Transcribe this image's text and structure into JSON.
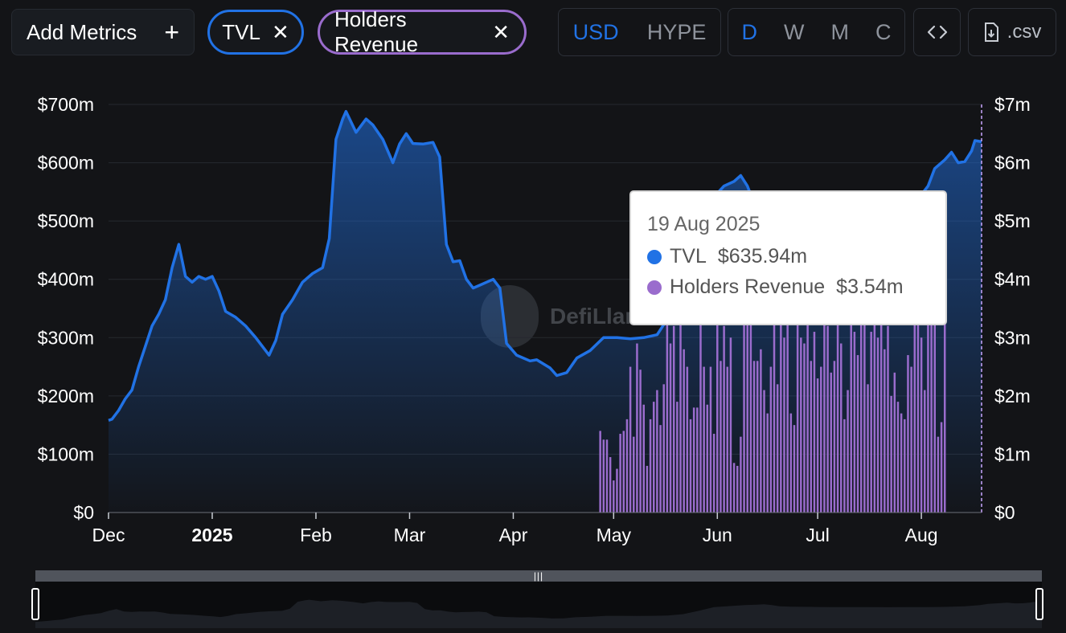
{
  "toolbar": {
    "add_metrics_label": "Add Metrics",
    "metrics": [
      {
        "label": "TVL",
        "color": "#2172e5"
      },
      {
        "label": "Holders Revenue",
        "color": "#9a6ccd"
      }
    ],
    "denominations": [
      "USD",
      "HYPE"
    ],
    "active_denomination": "USD",
    "granularity": [
      "D",
      "W",
      "M",
      "C"
    ],
    "active_granularity": "D",
    "embed_icon": "code-icon",
    "csv_icon": "file-download-icon",
    "csv_label": ".csv"
  },
  "tooltip": {
    "date": "19 Aug 2025",
    "rows": [
      {
        "label": "TVL",
        "value": "$635.94m",
        "color": "#2172e5"
      },
      {
        "label": "Holders Revenue",
        "value": "$3.54m",
        "color": "#9a6ccd"
      }
    ]
  },
  "watermark": "DefiLlama",
  "chart_data": {
    "type": "line",
    "x_start": "2024-12-01",
    "x_end": "2025-08-19",
    "xticks": [
      {
        "date": "2024-12-01",
        "label": "Dec"
      },
      {
        "date": "2025-01-01",
        "label": "2025",
        "bold": true
      },
      {
        "date": "2025-02-01",
        "label": "Feb"
      },
      {
        "date": "2025-03-01",
        "label": "Mar"
      },
      {
        "date": "2025-04-01",
        "label": "Apr"
      },
      {
        "date": "2025-05-01",
        "label": "May"
      },
      {
        "date": "2025-06-01",
        "label": "Jun"
      },
      {
        "date": "2025-07-01",
        "label": "Jul"
      },
      {
        "date": "2025-08-01",
        "label": "Aug"
      }
    ],
    "y_left": {
      "min": 0,
      "max": 700,
      "ticks": [
        0,
        100,
        200,
        300,
        400,
        500,
        600,
        700
      ],
      "tick_labels": [
        "$0",
        "$100m",
        "$200m",
        "$300m",
        "$400m",
        "$500m",
        "$600m",
        "$700m"
      ]
    },
    "y_right": {
      "min": 0,
      "max": 7,
      "ticks": [
        0,
        1,
        2,
        3,
        4,
        5,
        6,
        7
      ],
      "tick_labels": [
        "$0",
        "$1m",
        "$2m",
        "$3m",
        "$4m",
        "$5m",
        "$6m",
        "$7m"
      ]
    },
    "grid": true,
    "series": [
      {
        "name": "TVL",
        "type": "line",
        "axis": "left",
        "color": "#2172e5",
        "points": [
          [
            "2024-12-01",
            158
          ],
          [
            "2024-12-02",
            160
          ],
          [
            "2024-12-04",
            175
          ],
          [
            "2024-12-06",
            195
          ],
          [
            "2024-12-08",
            210
          ],
          [
            "2024-12-10",
            250
          ],
          [
            "2024-12-12",
            285
          ],
          [
            "2024-12-14",
            320
          ],
          [
            "2024-12-16",
            340
          ],
          [
            "2024-12-18",
            365
          ],
          [
            "2024-12-20",
            420
          ],
          [
            "2024-12-22",
            460
          ],
          [
            "2024-12-24",
            405
          ],
          [
            "2024-12-26",
            395
          ],
          [
            "2024-12-28",
            405
          ],
          [
            "2024-12-30",
            400
          ],
          [
            "2025-01-01",
            405
          ],
          [
            "2025-01-03",
            380
          ],
          [
            "2025-01-05",
            345
          ],
          [
            "2025-01-08",
            335
          ],
          [
            "2025-01-11",
            320
          ],
          [
            "2025-01-14",
            300
          ],
          [
            "2025-01-16",
            285
          ],
          [
            "2025-01-18",
            270
          ],
          [
            "2025-01-20",
            295
          ],
          [
            "2025-01-22",
            340
          ],
          [
            "2025-01-25",
            365
          ],
          [
            "2025-01-28",
            395
          ],
          [
            "2025-01-31",
            410
          ],
          [
            "2025-02-03",
            420
          ],
          [
            "2025-02-05",
            470
          ],
          [
            "2025-02-07",
            640
          ],
          [
            "2025-02-09",
            675
          ],
          [
            "2025-02-10",
            688
          ],
          [
            "2025-02-13",
            652
          ],
          [
            "2025-02-16",
            675
          ],
          [
            "2025-02-18",
            665
          ],
          [
            "2025-02-21",
            640
          ],
          [
            "2025-02-24",
            600
          ],
          [
            "2025-02-26",
            632
          ],
          [
            "2025-02-28",
            650
          ],
          [
            "2025-03-02",
            633
          ],
          [
            "2025-03-05",
            632
          ],
          [
            "2025-03-08",
            635
          ],
          [
            "2025-03-10",
            610
          ],
          [
            "2025-03-12",
            460
          ],
          [
            "2025-03-14",
            430
          ],
          [
            "2025-03-16",
            432
          ],
          [
            "2025-03-18",
            400
          ],
          [
            "2025-03-20",
            385
          ],
          [
            "2025-03-22",
            390
          ],
          [
            "2025-03-24",
            395
          ],
          [
            "2025-03-26",
            400
          ],
          [
            "2025-03-28",
            385
          ],
          [
            "2025-03-30",
            290
          ],
          [
            "2025-04-02",
            270
          ],
          [
            "2025-04-06",
            260
          ],
          [
            "2025-04-08",
            262
          ],
          [
            "2025-04-12",
            248
          ],
          [
            "2025-04-14",
            235
          ],
          [
            "2025-04-17",
            240
          ],
          [
            "2025-04-20",
            265
          ],
          [
            "2025-04-24",
            278
          ],
          [
            "2025-04-28",
            300
          ],
          [
            "2025-05-02",
            300
          ],
          [
            "2025-05-06",
            298
          ],
          [
            "2025-05-10",
            300
          ],
          [
            "2025-05-14",
            305
          ],
          [
            "2025-05-18",
            340
          ],
          [
            "2025-05-22",
            420
          ],
          [
            "2025-05-26",
            510
          ],
          [
            "2025-05-30",
            535
          ],
          [
            "2025-06-03",
            560
          ],
          [
            "2025-06-06",
            568
          ],
          [
            "2025-06-08",
            578
          ],
          [
            "2025-06-10",
            560
          ],
          [
            "2025-06-12",
            530
          ],
          [
            "2025-06-15",
            520
          ],
          [
            "2025-06-20",
            515
          ],
          [
            "2025-06-25",
            510
          ],
          [
            "2025-06-30",
            512
          ],
          [
            "2025-07-05",
            510
          ],
          [
            "2025-07-10",
            508
          ],
          [
            "2025-07-15",
            510
          ],
          [
            "2025-07-20",
            512
          ],
          [
            "2025-07-25",
            515
          ],
          [
            "2025-07-30",
            530
          ],
          [
            "2025-08-03",
            560
          ],
          [
            "2025-08-05",
            590
          ],
          [
            "2025-08-08",
            605
          ],
          [
            "2025-08-10",
            618
          ],
          [
            "2025-08-12",
            600
          ],
          [
            "2025-08-14",
            602
          ],
          [
            "2025-08-16",
            620
          ],
          [
            "2025-08-17",
            638
          ],
          [
            "2025-08-19",
            636
          ]
        ]
      },
      {
        "name": "Holders Revenue",
        "type": "bar",
        "axis": "right",
        "color": "#9a6ccd",
        "start_date": "2025-04-27",
        "values": [
          1.4,
          1.25,
          1.25,
          0.95,
          0.55,
          0.75,
          1.35,
          1.4,
          1.6,
          2.5,
          1.3,
          2.9,
          2.45,
          1.85,
          0.8,
          1.6,
          1.9,
          2.1,
          1.5,
          2.2,
          3.6,
          2.9,
          3.2,
          1.9,
          3.3,
          2.8,
          2.5,
          1.6,
          1.8,
          1.8,
          3.3,
          2.5,
          1.85,
          2.5,
          1.35,
          3.4,
          2.6,
          3.2,
          2.5,
          3.0,
          0.85,
          0.8,
          1.3,
          3.6,
          4.2,
          3.3,
          2.6,
          2.6,
          2.8,
          2.1,
          1.7,
          2.5,
          3.9,
          2.2,
          4.1,
          3.0,
          3.4,
          1.7,
          1.5,
          3.5,
          3.0,
          2.9,
          3.5,
          2.6,
          3.1,
          2.3,
          2.5,
          3.8,
          3.2,
          2.4,
          2.6,
          3.7,
          2.9,
          1.6,
          2.1,
          3.5,
          3.1,
          2.7,
          3.9,
          3.3,
          2.2,
          3.1,
          3.5,
          3.0,
          3.9,
          2.8,
          3.2,
          2.0,
          2.4,
          1.9,
          1.7,
          1.6,
          2.7,
          2.5,
          3.4,
          4.4,
          3.0,
          2.1,
          3.5,
          3.4,
          4.2,
          1.3,
          1.55,
          3.54
        ]
      }
    ],
    "highlight_date": "2025-08-19"
  }
}
